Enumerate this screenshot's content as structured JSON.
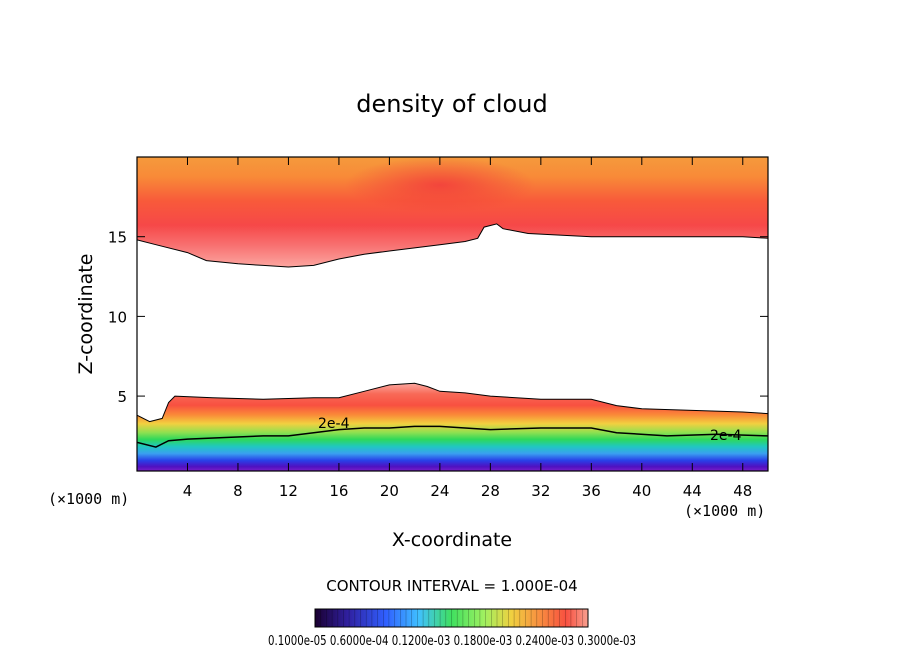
{
  "chart_data": {
    "type": "heatmap",
    "title": "density of cloud",
    "xlabel": "X-coordinate",
    "ylabel": "Z-coordinate",
    "x_unit_left": "(×1000 m)",
    "x_unit_right": "(×1000 m)",
    "xlim": [
      0,
      50
    ],
    "ylim": [
      0.3,
      20
    ],
    "x_ticks": [
      4,
      8,
      12,
      16,
      20,
      24,
      28,
      32,
      36,
      40,
      44,
      48
    ],
    "y_ticks": [
      5,
      10,
      15
    ],
    "contour_interval_text": "CONTOUR INTERVAL = 1.000E-04",
    "contour_labels": [
      "2e-4",
      "2e-4"
    ],
    "colorbar_text": "0.1000e-05 0.6000e-04 0.1200e-03 0.1800e-03 0.2400e-03 0.3000e-03",
    "colorbar_ticks": [
      1e-06,
      6e-05,
      0.00012,
      0.00018,
      0.00024,
      0.0003
    ],
    "value_range": [
      1e-06,
      0.0003
    ],
    "upper_cloud_base": [
      [
        0,
        14.8
      ],
      [
        1.5,
        14.5
      ],
      [
        4,
        14.0
      ],
      [
        5.5,
        13.5
      ],
      [
        8,
        13.3
      ],
      [
        10,
        13.2
      ],
      [
        12,
        13.1
      ],
      [
        14,
        13.2
      ],
      [
        16,
        13.6
      ],
      [
        18,
        13.9
      ],
      [
        20,
        14.1
      ],
      [
        22,
        14.3
      ],
      [
        24,
        14.5
      ],
      [
        26,
        14.7
      ],
      [
        27,
        14.9
      ],
      [
        27.5,
        15.6
      ],
      [
        28.5,
        15.8
      ],
      [
        29,
        15.5
      ],
      [
        31,
        15.2
      ],
      [
        36,
        15.0
      ],
      [
        42,
        15.0
      ],
      [
        48,
        15.0
      ],
      [
        50,
        14.9
      ]
    ],
    "lower_cloud_top": [
      [
        0,
        3.8
      ],
      [
        1,
        3.4
      ],
      [
        2,
        3.6
      ],
      [
        2.5,
        4.6
      ],
      [
        3,
        5.0
      ],
      [
        6,
        4.9
      ],
      [
        10,
        4.8
      ],
      [
        14,
        4.9
      ],
      [
        16,
        4.9
      ],
      [
        18,
        5.3
      ],
      [
        20,
        5.7
      ],
      [
        22,
        5.8
      ],
      [
        23,
        5.6
      ],
      [
        24,
        5.3
      ],
      [
        26,
        5.2
      ],
      [
        28,
        5.0
      ],
      [
        32,
        4.8
      ],
      [
        36,
        4.8
      ],
      [
        38,
        4.4
      ],
      [
        40,
        4.2
      ],
      [
        44,
        4.1
      ],
      [
        48,
        4.0
      ],
      [
        50,
        3.9
      ]
    ],
    "contour_2e4_lower": [
      [
        0,
        2.1
      ],
      [
        1.5,
        1.8
      ],
      [
        2.5,
        2.2
      ],
      [
        4,
        2.3
      ],
      [
        7,
        2.4
      ],
      [
        10,
        2.5
      ],
      [
        12,
        2.5
      ],
      [
        14,
        2.7
      ],
      [
        16,
        2.9
      ],
      [
        18,
        3.0
      ],
      [
        20,
        3.0
      ],
      [
        22,
        3.1
      ],
      [
        24,
        3.1
      ],
      [
        26,
        3.0
      ],
      [
        28,
        2.9
      ],
      [
        32,
        3.0
      ],
      [
        36,
        3.0
      ],
      [
        38,
        2.7
      ],
      [
        42,
        2.5
      ],
      [
        46,
        2.6
      ],
      [
        50,
        2.5
      ]
    ]
  }
}
